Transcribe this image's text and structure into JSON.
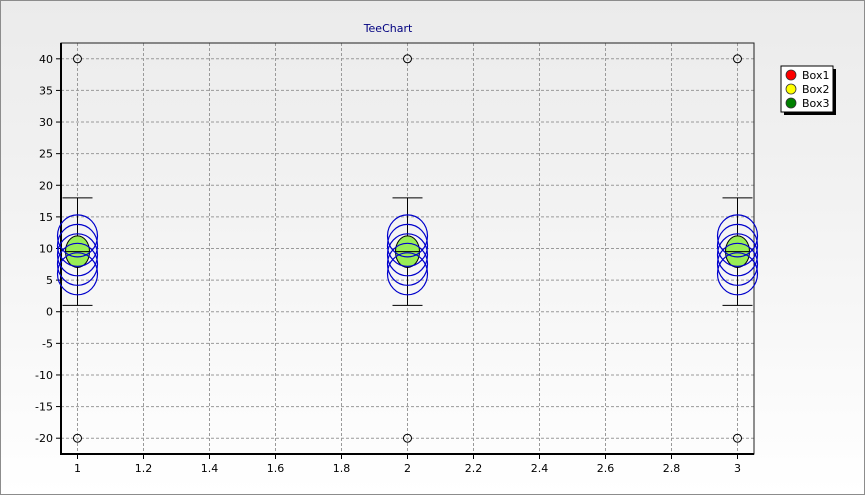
{
  "chart_data": {
    "type": "box",
    "title": "TeeChart",
    "xlabel": "",
    "ylabel": "",
    "xlim": [
      0.95,
      3.05
    ],
    "ylim": [
      -22.5,
      42.5
    ],
    "x_ticks": [
      1,
      1.2,
      1.4,
      1.6,
      1.8,
      2,
      2.2,
      2.4,
      2.6,
      2.8,
      3
    ],
    "x_tick_labels": [
      "1",
      "1.2",
      "1.4",
      "1.6",
      "1.8",
      "2",
      "2.2",
      "2.4",
      "2.6",
      "2.8",
      "3"
    ],
    "y_ticks": [
      -20,
      -15,
      -10,
      -5,
      0,
      5,
      10,
      15,
      20,
      25,
      30,
      35,
      40
    ],
    "y_tick_labels": [
      "-20",
      "-15",
      "-10",
      "-5",
      "0",
      "5",
      "10",
      "15",
      "20",
      "25",
      "30",
      "35",
      "40"
    ],
    "grid": true,
    "legend_position": "top-right",
    "series": [
      {
        "name": "Box1",
        "color": "#ff0000",
        "positions": [
          1,
          2,
          3
        ],
        "whisker_low": 1,
        "q1": 7,
        "median": 9.5,
        "q3": 12,
        "whisker_high": 18,
        "outliers": [
          40,
          -20
        ]
      },
      {
        "name": "Box2",
        "color": "#ffff00",
        "positions": [
          1,
          2,
          3
        ],
        "whisker_low": 1,
        "q1": 7,
        "median": 9.5,
        "q3": 12,
        "whisker_high": 18,
        "outliers": [
          40,
          -20
        ]
      },
      {
        "name": "Box3",
        "color": "#008000",
        "positions": [
          1,
          2,
          3
        ],
        "whisker_low": 1,
        "q1": 7,
        "median": 9.5,
        "q3": 12,
        "whisker_high": 18,
        "outliers": [
          40,
          -20
        ]
      }
    ],
    "point_rings_y": [
      6,
      7.5,
      9,
      10.5,
      12
    ],
    "ellipse_fill": "#99ee55",
    "ring_stroke": "#0000cc"
  }
}
